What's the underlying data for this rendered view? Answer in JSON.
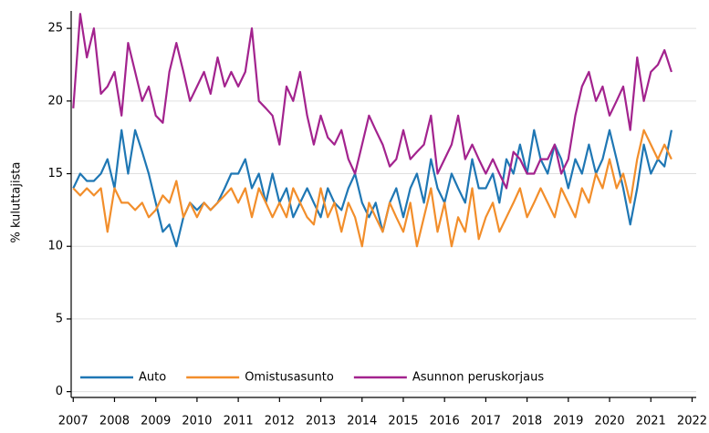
{
  "chart_data": {
    "type": "line",
    "y_label": "% kuluttajista",
    "x": [
      2007,
      2007.17,
      2007.33,
      2007.5,
      2007.67,
      2007.83,
      2008,
      2008.17,
      2008.33,
      2008.5,
      2008.67,
      2008.83,
      2009,
      2009.17,
      2009.33,
      2009.5,
      2009.67,
      2009.83,
      2010,
      2010.17,
      2010.33,
      2010.5,
      2010.67,
      2010.83,
      2011,
      2011.17,
      2011.33,
      2011.5,
      2011.67,
      2011.83,
      2012,
      2012.17,
      2012.33,
      2012.5,
      2012.67,
      2012.83,
      2013,
      2013.17,
      2013.33,
      2013.5,
      2013.67,
      2013.83,
      2014,
      2014.17,
      2014.33,
      2014.5,
      2014.67,
      2014.83,
      2015,
      2015.17,
      2015.33,
      2015.5,
      2015.67,
      2015.83,
      2016,
      2016.17,
      2016.33,
      2016.5,
      2016.67,
      2016.83,
      2017,
      2017.17,
      2017.33,
      2017.5,
      2017.67,
      2017.83,
      2018,
      2018.17,
      2018.33,
      2018.5,
      2018.67,
      2018.83,
      2019,
      2019.17,
      2019.33,
      2019.5,
      2019.67,
      2019.83,
      2020,
      2020.17,
      2020.33,
      2020.5,
      2020.67,
      2020.83,
      2021,
      2021.17,
      2021.33,
      2021.5
    ],
    "series": [
      {
        "name": "Auto",
        "color": "#1f77b4",
        "values": [
          14,
          15,
          14.5,
          14.5,
          15,
          16,
          14,
          18,
          15,
          18,
          16.5,
          15,
          13,
          11,
          11.5,
          10,
          12,
          13,
          12.5,
          13,
          12.5,
          13,
          14,
          15,
          15,
          16,
          14,
          15,
          13,
          15,
          13,
          14,
          12,
          13,
          14,
          13,
          12,
          14,
          13,
          12.5,
          14,
          15,
          13,
          12,
          13,
          11,
          13,
          14,
          12,
          14,
          15,
          13,
          16,
          14,
          13,
          15,
          14,
          13,
          16,
          14,
          14,
          15,
          13,
          16,
          15,
          17,
          15,
          18,
          16,
          15,
          17,
          16,
          14,
          16,
          15,
          17,
          15,
          16,
          18,
          16,
          14,
          11.5,
          14,
          17,
          15,
          16,
          15.5,
          18
        ]
      },
      {
        "name": "Omistusasunto",
        "color": "#f28e2b",
        "values": [
          14,
          13.5,
          14,
          13.5,
          14,
          11,
          14,
          13,
          13,
          12.5,
          13,
          12,
          12.5,
          13.5,
          13,
          14.5,
          12,
          13,
          12,
          13,
          12.5,
          13,
          13.5,
          14,
          13,
          14,
          12,
          14,
          13,
          12,
          13,
          12,
          14,
          13,
          12,
          11.5,
          14,
          12,
          13,
          11,
          13,
          12,
          10,
          13,
          12,
          11,
          13,
          12,
          11,
          13,
          10,
          12,
          14,
          11,
          13,
          10,
          12,
          11,
          14,
          10.5,
          12,
          13,
          11,
          12,
          13,
          14,
          12,
          13,
          14,
          13,
          12,
          14,
          13,
          12,
          14,
          13,
          15,
          14,
          16,
          14,
          15,
          13,
          16,
          18,
          17,
          16,
          17,
          16
        ]
      },
      {
        "name": "Asunnon peruskorjaus",
        "color": "#a3238e",
        "values": [
          19.5,
          26,
          23,
          25,
          20.5,
          21,
          22,
          19,
          24,
          22,
          20,
          21,
          19,
          18.5,
          22,
          24,
          22,
          20,
          21,
          22,
          20.5,
          23,
          21,
          22,
          21,
          22,
          25,
          20,
          19.5,
          19,
          17,
          21,
          20,
          22,
          19,
          17,
          19,
          17.5,
          17,
          18,
          16,
          15,
          17,
          19,
          18,
          17,
          15.5,
          16,
          18,
          16,
          16.5,
          17,
          19,
          15,
          16,
          17,
          19,
          16,
          17,
          16,
          15,
          16,
          15,
          14,
          16.5,
          16,
          15,
          15,
          16,
          16,
          17,
          15,
          16,
          19,
          21,
          22,
          20,
          21,
          19,
          20,
          21,
          18,
          23,
          20,
          22,
          22.5,
          23.5,
          22
        ]
      }
    ],
    "xlim": [
      2006.95,
      2022.1
    ],
    "xticks": [
      2007,
      2008,
      2009,
      2010,
      2011,
      2012,
      2013,
      2014,
      2015,
      2016,
      2017,
      2018,
      2019,
      2020,
      2021,
      2022
    ],
    "ylim": [
      -0.4,
      26.2
    ],
    "yticks": [
      0,
      5,
      10,
      15,
      20,
      25
    ],
    "grid": true,
    "legend": "bottom-left"
  }
}
